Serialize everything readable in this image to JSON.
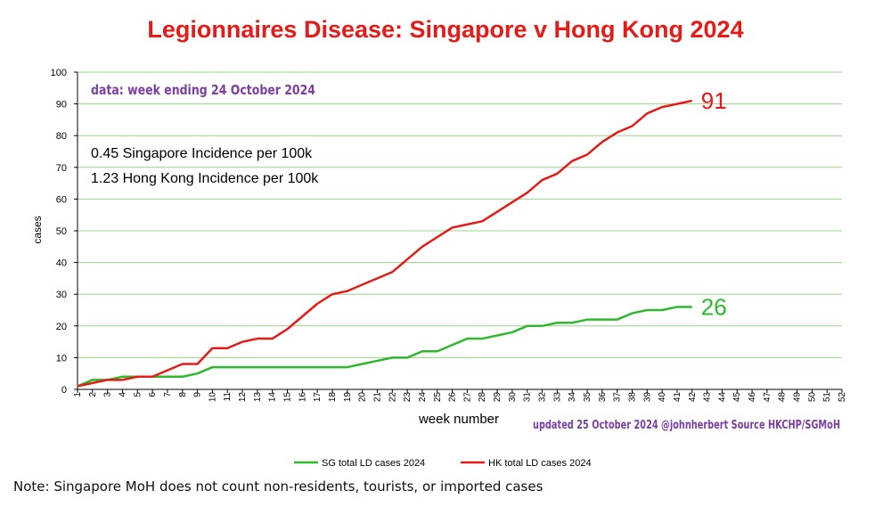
{
  "chart_data": {
    "type": "line",
    "title": "Legionnaires Disease: Singapore v Hong Kong 2024",
    "xlabel": "week number",
    "ylabel": "cases",
    "ylim": [
      0,
      100
    ],
    "yticks": [
      0,
      10,
      20,
      30,
      40,
      50,
      60,
      70,
      80,
      90,
      100
    ],
    "x_range": [
      1,
      52
    ],
    "grid": true,
    "legend_position": "bottom-center",
    "data_note": "data: week ending 24 October 2024",
    "incidence_lines": [
      "0.45 Singapore Incidence per 100k",
      "1.23 Hong Kong Incidence per 100k"
    ],
    "source_note": "updated 25 October 2024 @johnherbert Source HKCHP/SGMoH",
    "x": [
      1,
      2,
      3,
      4,
      5,
      6,
      7,
      8,
      9,
      10,
      11,
      12,
      13,
      14,
      15,
      16,
      17,
      18,
      19,
      20,
      21,
      22,
      23,
      24,
      25,
      26,
      27,
      28,
      29,
      30,
      31,
      32,
      33,
      34,
      35,
      36,
      37,
      38,
      39,
      40,
      41,
      42
    ],
    "series": [
      {
        "name": "SG total LD cases 2024",
        "color": "#2eb82e",
        "end_label": "26",
        "values": [
          1,
          3,
          3,
          4,
          4,
          4,
          4,
          4,
          5,
          7,
          7,
          7,
          7,
          7,
          7,
          7,
          7,
          7,
          7,
          8,
          9,
          10,
          10,
          12,
          12,
          14,
          16,
          16,
          17,
          18,
          20,
          20,
          21,
          21,
          22,
          22,
          22,
          24,
          25,
          25,
          26,
          26
        ]
      },
      {
        "name": "HK total LD cases 2024",
        "color": "#e41b17",
        "end_label": "91",
        "values": [
          1,
          2,
          3,
          3,
          4,
          4,
          6,
          8,
          8,
          13,
          13,
          15,
          16,
          16,
          19,
          23,
          27,
          30,
          31,
          33,
          35,
          37,
          41,
          45,
          48,
          51,
          52,
          53,
          56,
          59,
          62,
          66,
          68,
          72,
          74,
          78,
          81,
          83,
          87,
          89,
          90,
          91
        ]
      }
    ]
  },
  "footnote": "Note: Singapore MoH does not count non-residents, tourists, or imported cases"
}
